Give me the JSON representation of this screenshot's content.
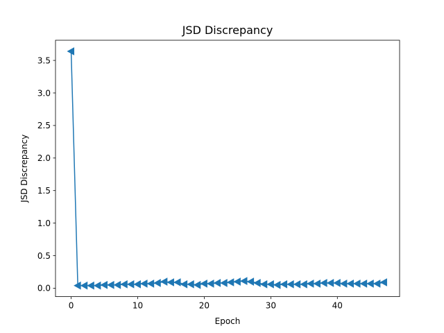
{
  "chart_data": {
    "type": "line",
    "title": "JSD Discrepancy",
    "xlabel": "Epoch",
    "ylabel": "JSD Discrepancy",
    "xlim": [
      -2.35,
      49.35
    ],
    "ylim": [
      -0.13,
      3.81
    ],
    "xticks": [
      0,
      10,
      20,
      30,
      40
    ],
    "xtick_labels": [
      "0",
      "10",
      "20",
      "30",
      "40"
    ],
    "yticks": [
      0.0,
      0.5,
      1.0,
      1.5,
      2.0,
      2.5,
      3.0,
      3.5
    ],
    "ytick_labels": [
      "0.0",
      "0.5",
      "1.0",
      "1.5",
      "2.0",
      "2.5",
      "3.0",
      "3.5"
    ],
    "grid": false,
    "marker": "triangle-left",
    "color": "#1f77b4",
    "x": [
      0,
      1,
      2,
      3,
      4,
      5,
      6,
      7,
      8,
      9,
      10,
      11,
      12,
      13,
      14,
      15,
      16,
      17,
      18,
      19,
      20,
      21,
      22,
      23,
      24,
      25,
      26,
      27,
      28,
      29,
      30,
      31,
      32,
      33,
      34,
      35,
      36,
      37,
      38,
      39,
      40,
      41,
      42,
      43,
      44,
      45,
      46,
      47
    ],
    "y": [
      3.64,
      0.04,
      0.04,
      0.04,
      0.04,
      0.05,
      0.05,
      0.05,
      0.06,
      0.06,
      0.06,
      0.07,
      0.07,
      0.08,
      0.1,
      0.09,
      0.09,
      0.06,
      0.06,
      0.05,
      0.07,
      0.07,
      0.08,
      0.08,
      0.09,
      0.1,
      0.11,
      0.1,
      0.08,
      0.06,
      0.06,
      0.05,
      0.06,
      0.06,
      0.06,
      0.06,
      0.07,
      0.07,
      0.08,
      0.08,
      0.08,
      0.07,
      0.07,
      0.07,
      0.07,
      0.07,
      0.07,
      0.09
    ]
  }
}
